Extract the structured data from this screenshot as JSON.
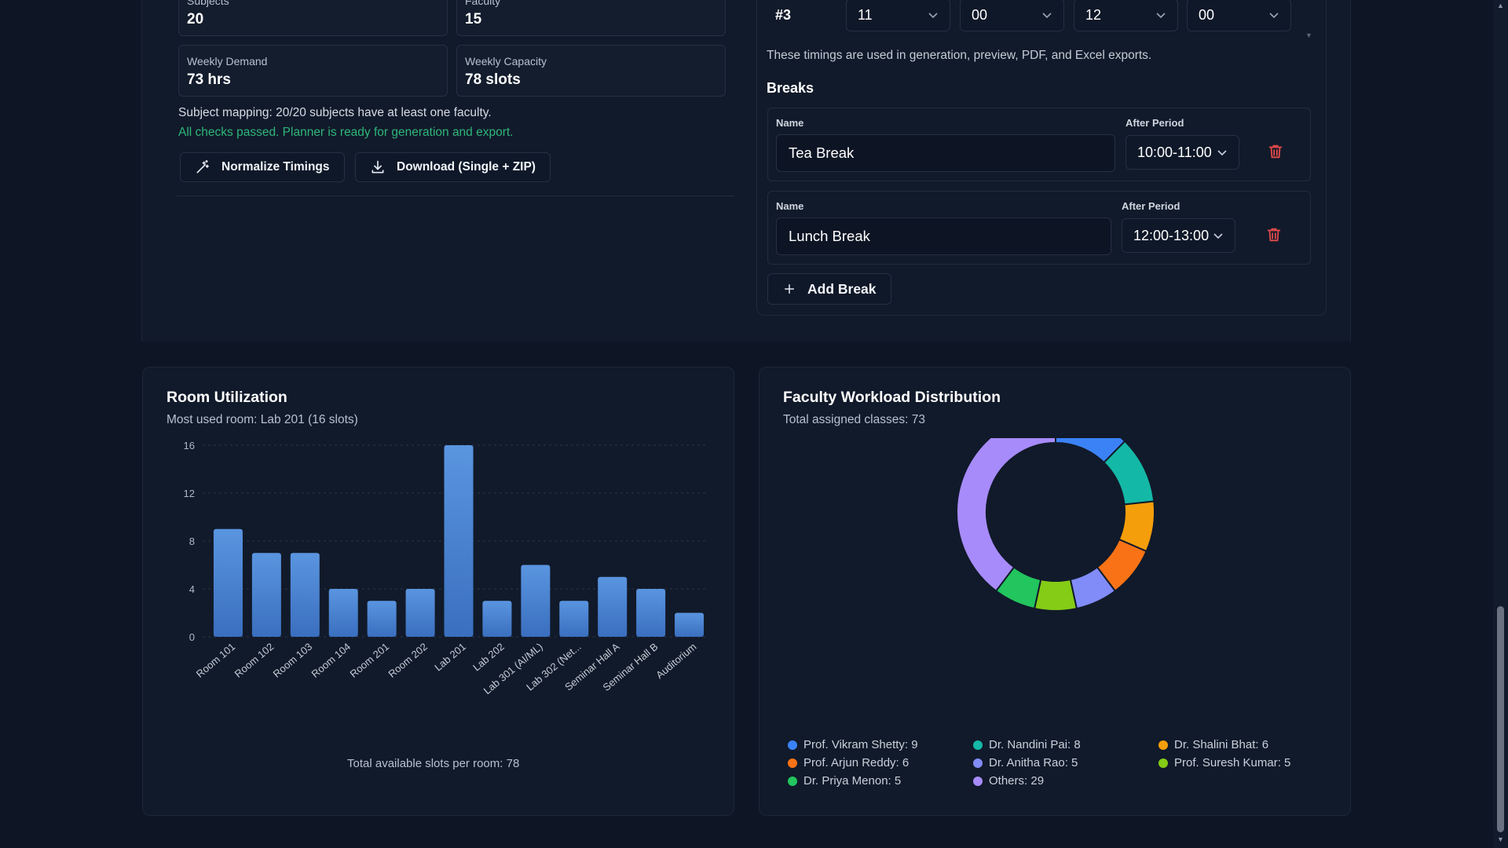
{
  "summary": {
    "stats": [
      {
        "label": "Subjects",
        "value": "20"
      },
      {
        "label": "Faculty",
        "value": "15"
      },
      {
        "label": "Weekly Demand",
        "value": "73 hrs"
      },
      {
        "label": "Weekly Capacity",
        "value": "78 slots"
      }
    ],
    "mapping_text": "Subject mapping: 20/20 subjects have at least one faculty.",
    "checks_text": "All checks passed. Planner is ready for generation and export.",
    "normalize_label": "Normalize Timings",
    "download_label": "Download (Single + ZIP)"
  },
  "timings": {
    "period_no": "#3",
    "start_hour": "11",
    "start_min": "00",
    "end_hour": "12",
    "end_min": "00",
    "note": "These timings are used in generation, preview, PDF, and Excel exports."
  },
  "breaks": {
    "title": "Breaks",
    "name_label": "Name",
    "after_label": "After Period",
    "items": [
      {
        "name": "Tea Break",
        "after": "10:00-11:00"
      },
      {
        "name": "Lunch Break",
        "after": "12:00-13:00"
      }
    ],
    "add_label": "Add Break"
  },
  "colors": {
    "accent_green": "#2fb67a",
    "danger": "#e24a4a",
    "bar": "#4a86d6"
  },
  "room_chart": {
    "title": "Room Utilization",
    "subtitle": "Most used room: Lab 201 (16 slots)",
    "footer": "Total available slots per room: 78"
  },
  "workload_chart": {
    "title": "Faculty Workload Distribution",
    "subtitle": "Total assigned classes: 73"
  },
  "chart_data": [
    {
      "type": "bar",
      "title": "Room Utilization",
      "categories": [
        "Room 101",
        "Room 102",
        "Room 103",
        "Room 104",
        "Room 201",
        "Room 202",
        "Lab 201",
        "Lab 202",
        "Lab 301 (AI/ML)",
        "Lab 302 (Net...",
        "Seminar Hall A",
        "Seminar Hall B",
        "Auditorium"
      ],
      "values": [
        9,
        7,
        7,
        4,
        3,
        4,
        16,
        3,
        6,
        3,
        5,
        4,
        2
      ],
      "yticks": [
        "0",
        "4",
        "8",
        "12",
        "16"
      ],
      "ylim": [
        0,
        16
      ],
      "grid": true
    },
    {
      "type": "pie",
      "title": "Faculty Workload Distribution",
      "categories": [
        "Prof. Vikram Shetty",
        "Dr. Nandini Pai",
        "Dr. Shalini Bhat",
        "Prof. Arjun Reddy",
        "Dr. Anitha Rao",
        "Prof. Suresh Kumar",
        "Dr. Priya Menon",
        "Others"
      ],
      "values": [
        9,
        8,
        6,
        6,
        5,
        5,
        5,
        29
      ],
      "legend_labels": [
        "Prof. Vikram Shetty: 9",
        "Dr. Nandini Pai: 8",
        "Dr. Shalini Bhat: 6",
        "Prof. Arjun Reddy: 6",
        "Dr. Anitha Rao: 5",
        "Prof. Suresh Kumar: 5",
        "Dr. Priya Menon: 5",
        "Others: 29"
      ],
      "colors": [
        "#3b82f6",
        "#14b8a6",
        "#f59e0b",
        "#f97316",
        "#818cf8",
        "#84cc16",
        "#22c55e",
        "#a78bfa"
      ],
      "legend_placement": "bottom"
    }
  ]
}
